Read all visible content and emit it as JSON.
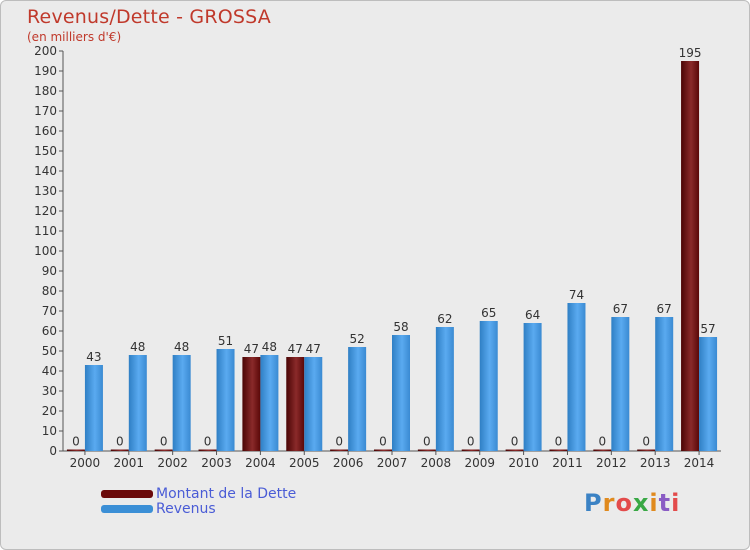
{
  "title": "Revenus/Dette - GROSSA",
  "subtitle": "(en milliers d'€)",
  "colors": {
    "debt": "#6b0a0a",
    "revenue": "#3b8fd6",
    "title": "#c0392b",
    "legend_text": "#4a5cd6"
  },
  "legend": [
    {
      "label": "Montant de la Dette",
      "color": "#6b0a0a"
    },
    {
      "label": "Revenus",
      "color": "#3b8fd6"
    }
  ],
  "logo": {
    "text": "Proxiti",
    "letter_colors": [
      "#3b82c4",
      "#e08a1e",
      "#e34b4b",
      "#39a845",
      "#e08a1e",
      "#8a5cc4",
      "#e34b4b"
    ]
  },
  "chart_data": {
    "type": "bar",
    "categories": [
      "2000",
      "2001",
      "2002",
      "2003",
      "2004",
      "2005",
      "2006",
      "2007",
      "2008",
      "2009",
      "2010",
      "2011",
      "2012",
      "2013",
      "2014"
    ],
    "series": [
      {
        "name": "Montant de la Dette",
        "values": [
          0,
          0,
          0,
          0,
          47,
          47,
          0,
          0,
          0,
          0,
          0,
          0,
          0,
          0,
          195
        ]
      },
      {
        "name": "Revenus",
        "values": [
          43,
          48,
          48,
          51,
          48,
          47,
          52,
          58,
          62,
          65,
          64,
          74,
          67,
          67,
          57
        ]
      }
    ],
    "ylim": [
      0,
      200
    ],
    "ytick_step": 10,
    "grid": false
  }
}
